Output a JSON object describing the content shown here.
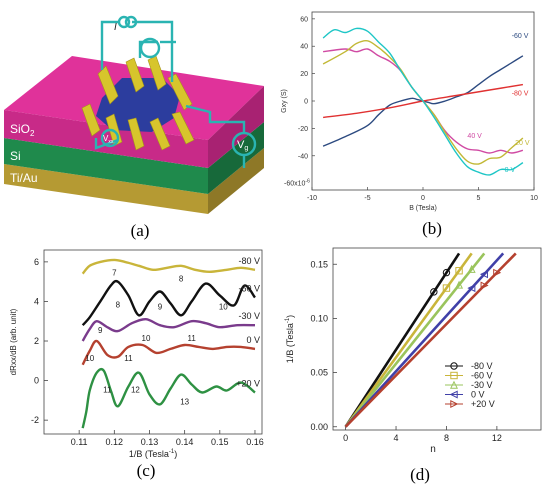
{
  "figure": {
    "panel_labels": [
      "(a)",
      "(b)",
      "(c)",
      "(d)"
    ]
  },
  "device": {
    "layer_labels": [
      "SiO",
      "Si",
      "Ti/Au"
    ],
    "sio2_subscript": "2",
    "current_label": "I",
    "vxy_label": "V",
    "vxy_sub": "xy",
    "vxx_label": "V",
    "vxx_sub": "xx",
    "vg_label": "V",
    "vg_sub": "g",
    "colors": {
      "sio2": "#e0329a",
      "si": "#1f8a4c",
      "tiau": "#b59a33",
      "graphene": "#2c3d9e",
      "contacts": "#d7c52c",
      "wires": "#2ab4b2"
    }
  },
  "chart_data": [
    {
      "id": "b",
      "type": "line",
      "xlabel": "B (Tesla)",
      "ylabel": "Gxy (S)",
      "y_multiplier_label": "-60x10",
      "y_multiplier_exp": "-6",
      "xlim": [
        -10,
        10
      ],
      "ylim": [
        -65,
        65
      ],
      "xticks": [
        -10,
        -5,
        0,
        5,
        10
      ],
      "yticks": [
        -40,
        -20,
        0,
        20,
        40,
        60
      ],
      "grid": false,
      "series": [
        {
          "name": "-60 V",
          "color": "#2c4a80",
          "x": [
            -9,
            -7,
            -5,
            -4,
            -3,
            -2,
            -1,
            -0.5,
            0,
            0.5,
            1,
            2,
            3,
            4,
            5,
            6,
            7,
            8,
            9
          ],
          "y": [
            -33,
            -26,
            -18,
            -10,
            -3,
            0,
            2,
            1,
            0,
            -1,
            -2,
            0,
            3,
            6,
            12,
            18,
            23,
            28,
            33
          ]
        },
        {
          "name": "-80 V",
          "color": "#e03131",
          "x": [
            -9,
            -6,
            -3,
            0,
            3,
            6,
            9
          ],
          "y": [
            -12,
            -9,
            -5,
            0,
            4,
            8,
            12
          ]
        },
        {
          "name": "40 V",
          "color": "#d04aa3",
          "x": [
            -9,
            -7,
            -6,
            -5,
            -4,
            -3,
            -2,
            -1,
            0,
            1,
            2,
            3,
            4,
            5,
            6,
            7,
            8,
            9
          ],
          "y": [
            36,
            38,
            36,
            38,
            33,
            29,
            22,
            10,
            0,
            -10,
            -22,
            -30,
            -35,
            -36,
            -38,
            -36,
            -38,
            -36
          ]
        },
        {
          "name": "20 V",
          "color": "#c2b836",
          "x": [
            -9,
            -7,
            -6,
            -5,
            -4,
            -3,
            -2,
            -1,
            0,
            1,
            2,
            3,
            4,
            5,
            6,
            7,
            8,
            9
          ],
          "y": [
            27,
            36,
            42,
            44,
            39,
            32,
            23,
            10,
            0,
            -10,
            -23,
            -35,
            -44,
            -46,
            -42,
            -41,
            -34,
            -27
          ]
        },
        {
          "name": "0 V",
          "color": "#1ec6c6",
          "x": [
            -9,
            -8,
            -7,
            -6,
            -5,
            -4,
            -3,
            -2,
            -1,
            0,
            1,
            2,
            3,
            4,
            5,
            6,
            7,
            8,
            9
          ],
          "y": [
            46,
            52,
            50,
            53,
            51,
            43,
            35,
            22,
            10,
            0,
            -12,
            -25,
            -38,
            -48,
            -52,
            -54,
            -50,
            -50,
            -45
          ]
        }
      ]
    },
    {
      "id": "c",
      "type": "line",
      "xlabel": "1/B (Tesla",
      "xlabel_exp": "-1",
      "xlabel_close": ")",
      "ylabel": "dRxx/dB (arb. unit)",
      "xlim": [
        0.1,
        0.162
      ],
      "ylim": [
        -2.7,
        6.6
      ],
      "xticks": [
        0.11,
        0.12,
        0.13,
        0.14,
        0.15,
        0.16
      ],
      "yticks": [
        -2,
        0,
        2,
        4,
        6
      ],
      "grid": false,
      "series": [
        {
          "name": "-80 V",
          "color": "#c9b53a",
          "x": [
            0.111,
            0.113,
            0.116,
            0.12,
            0.123,
            0.127,
            0.131,
            0.135,
            0.139,
            0.143,
            0.147,
            0.152,
            0.156,
            0.16
          ],
          "y": [
            5.4,
            5.8,
            6.0,
            6.1,
            6.0,
            5.8,
            5.6,
            5.7,
            5.8,
            5.6,
            5.5,
            5.6,
            5.7,
            5.6
          ],
          "labels": [
            {
              "t": "7",
              "x": 0.12,
              "y": 5.3
            },
            {
              "t": "8",
              "x": 0.139,
              "y": 5.0
            }
          ]
        },
        {
          "name": "-60 V",
          "color": "#111111",
          "x": [
            0.111,
            0.113,
            0.116,
            0.119,
            0.121,
            0.124,
            0.127,
            0.13,
            0.133,
            0.136,
            0.139,
            0.142,
            0.146,
            0.15,
            0.154,
            0.157,
            0.16
          ],
          "y": [
            2.8,
            3.2,
            4.0,
            4.8,
            5.0,
            4.3,
            3.3,
            4.0,
            4.5,
            3.9,
            3.3,
            4.0,
            4.9,
            4.3,
            3.8,
            4.8,
            4.2
          ],
          "labels": [
            {
              "t": "8",
              "x": 0.121,
              "y": 3.7
            },
            {
              "t": "9",
              "x": 0.133,
              "y": 3.6
            },
            {
              "t": "10",
              "x": 0.151,
              "y": 3.6
            }
          ]
        },
        {
          "name": "-30 V",
          "color": "#7a3b8c",
          "x": [
            0.111,
            0.113,
            0.115,
            0.118,
            0.121,
            0.125,
            0.129,
            0.133,
            0.137,
            0.142,
            0.146,
            0.15,
            0.155,
            0.16
          ],
          "y": [
            2.0,
            2.6,
            3.0,
            2.7,
            2.5,
            2.9,
            3.1,
            2.8,
            2.7,
            3.0,
            2.9,
            2.7,
            2.8,
            2.8
          ],
          "labels": [
            {
              "t": "9",
              "x": 0.116,
              "y": 2.4
            },
            {
              "t": "10",
              "x": 0.129,
              "y": 2.0
            },
            {
              "t": "11",
              "x": 0.142,
              "y": 2.0
            }
          ]
        },
        {
          "name": "0 V",
          "color": "#b5412f",
          "x": [
            0.111,
            0.113,
            0.115,
            0.118,
            0.121,
            0.124,
            0.128,
            0.132,
            0.136,
            0.14,
            0.144,
            0.148,
            0.152,
            0.156,
            0.16
          ],
          "y": [
            0.8,
            1.5,
            2.0,
            1.3,
            1.2,
            1.7,
            1.8,
            1.4,
            1.6,
            1.8,
            1.7,
            1.6,
            1.7,
            1.7,
            1.6
          ],
          "labels": [
            {
              "t": "10",
              "x": 0.113,
              "y": 1.0
            },
            {
              "t": "11",
              "x": 0.124,
              "y": 1.0
            }
          ]
        },
        {
          "name": "+20 V",
          "color": "#2e9143",
          "x": [
            0.111,
            0.112,
            0.113,
            0.115,
            0.117,
            0.119,
            0.121,
            0.124,
            0.127,
            0.13,
            0.133,
            0.136,
            0.139,
            0.142,
            0.145,
            0.149,
            0.152,
            0.156,
            0.16
          ],
          "y": [
            -2.4,
            -1.6,
            -0.5,
            0.4,
            0.5,
            -0.5,
            -1.3,
            -0.3,
            0.4,
            -0.7,
            -1.2,
            -0.4,
            0.3,
            -0.2,
            -0.6,
            -0.3,
            -0.5,
            -0.1,
            -0.6
          ],
          "labels": [
            {
              "t": "11",
              "x": 0.118,
              "y": -0.6
            },
            {
              "t": "12",
              "x": 0.126,
              "y": -0.6
            },
            {
              "t": "13",
              "x": 0.14,
              "y": -1.2
            }
          ]
        }
      ]
    },
    {
      "id": "d",
      "type": "line",
      "xlabel": "n",
      "ylabel": "1/B (Tesla",
      "ylabel_exp": "-1",
      "ylabel_close": ")",
      "xlim": [
        -1,
        15.5
      ],
      "ylim": [
        -0.003,
        0.165
      ],
      "xticks": [
        0,
        4,
        8,
        12
      ],
      "yticks": [
        0.0,
        0.05,
        0.1,
        0.15
      ],
      "ytick_labels": [
        "0.00",
        "0.05",
        "0.10",
        "0.15"
      ],
      "grid": false,
      "legend_position": "bottom-right",
      "series": [
        {
          "name": "-80 V",
          "color": "#111111",
          "marker": "circle",
          "x": [
            0,
            9
          ],
          "y": [
            0,
            0.16
          ],
          "points_x": [
            7,
            8
          ],
          "points_y": [
            0.1245,
            0.1423
          ]
        },
        {
          "name": "-60 V",
          "color": "#c9b53a",
          "marker": "square",
          "x": [
            0,
            10
          ],
          "y": [
            0,
            0.16
          ],
          "points_x": [
            8,
            9
          ],
          "points_y": [
            0.128,
            0.144
          ]
        },
        {
          "name": "-30 V",
          "color": "#9ac45c",
          "marker": "triangle-up",
          "x": [
            0,
            11
          ],
          "y": [
            0,
            0.16
          ],
          "points_x": [
            9,
            10
          ],
          "points_y": [
            0.1309,
            0.1455
          ]
        },
        {
          "name": "0 V",
          "color": "#4040a8",
          "marker": "triangle-left",
          "x": [
            0,
            12.5
          ],
          "y": [
            0,
            0.16
          ],
          "points_x": [
            10,
            11
          ],
          "points_y": [
            0.128,
            0.1408
          ]
        },
        {
          "name": "+20 V",
          "color": "#b5412f",
          "marker": "triangle-right",
          "x": [
            0,
            13.5
          ],
          "y": [
            0,
            0.16
          ],
          "points_x": [
            11,
            12
          ],
          "points_y": [
            0.1304,
            0.1422
          ]
        }
      ]
    }
  ]
}
